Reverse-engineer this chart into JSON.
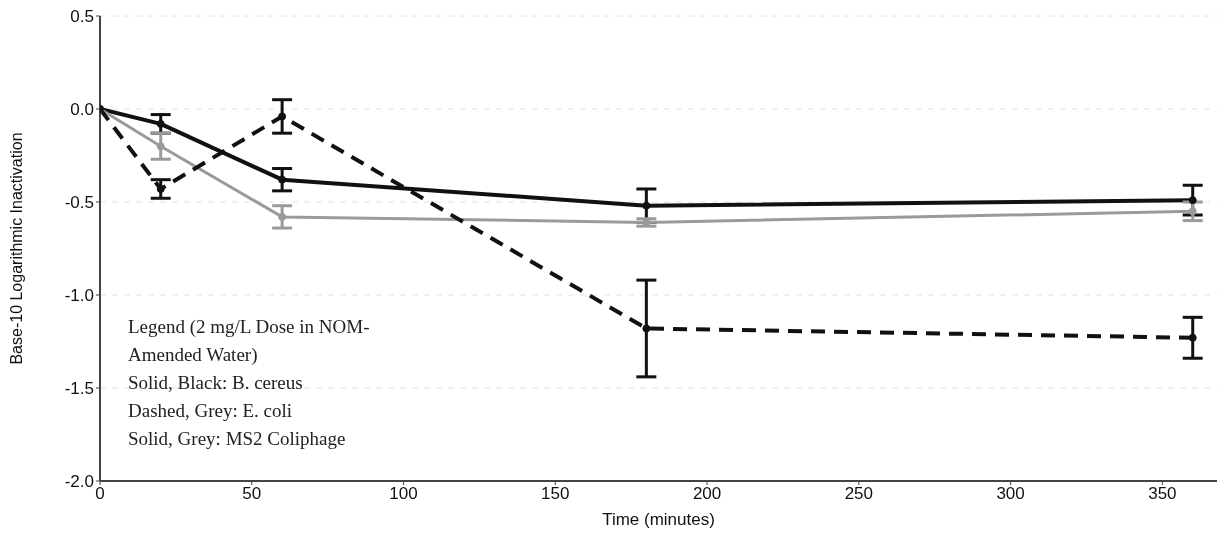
{
  "chart_data": {
    "type": "line",
    "xlabel": "Time (minutes)",
    "ylabel": "Base-10 Logarithmic Inactivation",
    "xlim": [
      0,
      368
    ],
    "xticks": [
      0,
      50,
      100,
      150,
      200,
      250,
      300,
      350
    ],
    "ylim": [
      -2.0,
      0.5
    ],
    "yticks": [
      {
        "value": 0.5,
        "label": "0.5"
      },
      {
        "value": 0,
        "label": "0.0"
      },
      {
        "value": -0.5,
        "label": "-0.5"
      },
      {
        "value": -1,
        "label": "-1.0"
      },
      {
        "value": -1.5,
        "label": "-1.5"
      },
      {
        "value": -2,
        "label": "-2.0"
      }
    ],
    "x": [
      0,
      20,
      60,
      180,
      360
    ],
    "series": [
      {
        "color": "#111111",
        "line_style": "solid",
        "values": [
          0,
          -0.08,
          -0.38,
          -0.52,
          -0.49
        ],
        "errors": [
          null,
          0.05,
          0.06,
          0.09,
          0.08
        ]
      },
      {
        "color": "#9a9a9a",
        "line_style": "solid",
        "values": [
          0,
          -0.2,
          -0.58,
          -0.61,
          -0.55
        ],
        "errors": [
          null,
          0.07,
          0.06,
          0.02,
          0.05
        ]
      },
      {
        "color": "#111111",
        "line_style": "dashed",
        "values": [
          0,
          -0.43,
          -0.04,
          -1.18,
          -1.23
        ],
        "errors": [
          null,
          0.05,
          0.09,
          0.26,
          0.11
        ]
      }
    ],
    "annotations": [
      "Legend  (2 mg/L Dose in NOM-Amended Water)",
      "Solid, Black: B. cereus",
      "Dashed, Grey: E. coli",
      "Solid, Grey: MS2 Coliphage"
    ],
    "grid": "y",
    "marker": "circle"
  }
}
